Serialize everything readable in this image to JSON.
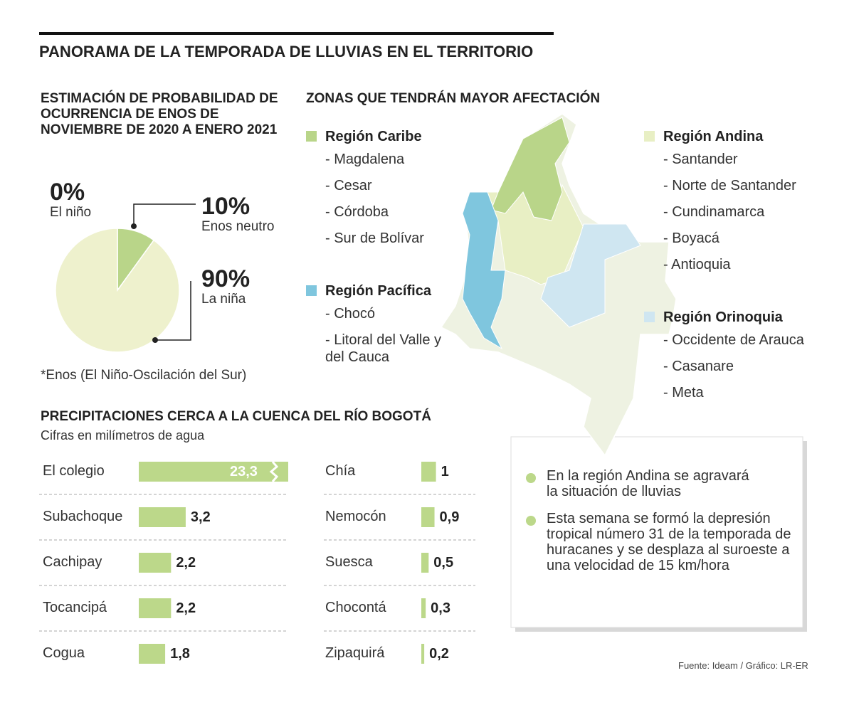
{
  "title": "PANORAMA DE LA TEMPORADA DE LLUVIAS EN EL TERRITORIO",
  "chart_data": [
    {
      "type": "pie",
      "title": "ESTIMACIÓN DE PROBABILIDAD DE OCURRENCIA DE ENOS DE NOVIEMBRE DE 2020 A ENERO 2021",
      "categories": [
        "El niño",
        "Enos neutro",
        "La niña"
      ],
      "values": [
        0,
        10,
        90
      ],
      "value_labels": [
        "0%",
        "10%",
        "90%"
      ],
      "colors": [
        "#b9d589",
        "#b9d589",
        "#eef1cd"
      ],
      "note": "*Enos (El Niño-Oscilación del Sur)"
    },
    {
      "type": "bar",
      "title": "PRECIPITACIONES CERCA A LA CUENCA DEL RÍO BOGOTÁ",
      "subtitle": "Cifras en milímetros de agua",
      "categories": [
        "El colegio",
        "Subachoque",
        "Cachipay",
        "Tocancipá",
        "Cogua",
        "Chía",
        "Nemocón",
        "Suesca",
        "Chocontá",
        "Zipaquirá"
      ],
      "values": [
        23.3,
        3.2,
        2.2,
        2.2,
        1.8,
        1,
        0.9,
        0.5,
        0.3,
        0.2
      ],
      "value_labels": [
        "23,3",
        "3,2",
        "2,2",
        "2,2",
        "1,8",
        "1",
        "0,9",
        "0,5",
        "0,3",
        "0,2"
      ],
      "color": "#bcd88a"
    }
  ],
  "map": {
    "title": "ZONAS QUE TENDRÁN MAYOR AFECTACIÓN",
    "regions": [
      {
        "name": "Región Caribe",
        "color": "#b9d589",
        "items": [
          "- Magdalena",
          "- Cesar",
          "- Córdoba",
          "- Sur de Bolívar"
        ]
      },
      {
        "name": "Región Pacífica",
        "color": "#7fc6de",
        "items": [
          "- Chocó",
          "- Litoral del Valle y del Cauca"
        ]
      },
      {
        "name": "Región Andina",
        "color": "#e8efc4",
        "items": [
          "- Santander",
          "- Norte de Santander",
          "- Cundinamarca",
          "- Boyacá",
          "- Antioquia"
        ]
      },
      {
        "name": "Región Orinoquia",
        "color": "#cfe6f1",
        "items": [
          "- Occidente de Arauca",
          "- Casanare",
          "- Meta"
        ]
      }
    ]
  },
  "notes": [
    "En la región Andina se agravará la situación de lluvias",
    "Esta semana se formó la depresión tropical número 31 de la temporada de huracanes y se desplaza al suroeste a una velocidad de 15 km/hora"
  ],
  "source": "Fuente: Ideam / Gráfico: LR-ER"
}
